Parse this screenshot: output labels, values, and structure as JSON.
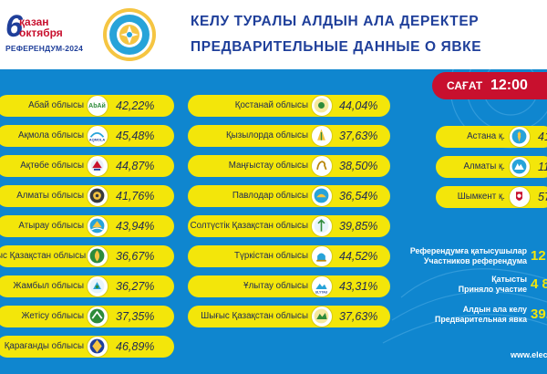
{
  "header": {
    "logo_day": "6",
    "logo_month_kz": "қазан",
    "logo_month_ru": "октября",
    "logo_referendum": "РЕФЕРЕНДУМ-2024",
    "title_kz": "КЕЛУ ТУРАЛЫ АЛДЫН АЛА ДЕРЕКТЕР",
    "title_ru": "ПРЕДВАРИТЕЛЬНЫЕ ДАННЫЕ О ЯВКЕ"
  },
  "time": {
    "label": "САҒАТ",
    "value": "12:00"
  },
  "regions_col1": [
    {
      "name": "Абай облысы",
      "value": "42,22%"
    },
    {
      "name": "Ақмола облысы",
      "value": "45,48%"
    },
    {
      "name": "Ақтөбе облысы",
      "value": "44,87%"
    },
    {
      "name": "Алматы облысы",
      "value": "41,76%"
    },
    {
      "name": "Атырау облысы",
      "value": "43,94%"
    },
    {
      "name": "ыс Қазақстан облысы",
      "value": "36,67%"
    },
    {
      "name": "Жамбыл облысы",
      "value": "36,27%"
    },
    {
      "name": "Жетісу облысы",
      "value": "37,35%"
    },
    {
      "name": "Қарағанды облысы",
      "value": "46,89%"
    }
  ],
  "regions_col2": [
    {
      "name": "Қостанай облысы",
      "value": "44,04%"
    },
    {
      "name": "Қызылорда облысы",
      "value": "37,63%"
    },
    {
      "name": "Маңғыстау облысы",
      "value": "38,50%"
    },
    {
      "name": "Павлодар облысы",
      "value": "36,54%"
    },
    {
      "name": "Солтүстік Қазақстан облысы",
      "value": "39,85%"
    },
    {
      "name": "Түркістан облысы",
      "value": "44,52%"
    },
    {
      "name": "Ұлытау облысы",
      "value": "43,31%"
    },
    {
      "name": "Шығыс Қазақстан облысы",
      "value": "37,63%"
    }
  ],
  "cities": [
    {
      "name": "Астана қ.",
      "value": "41"
    },
    {
      "name": "Алматы қ.",
      "value": "11"
    },
    {
      "name": "Шымкент қ.",
      "value": "57"
    }
  ],
  "stats": [
    {
      "line1": "Референдумға қатысушылар",
      "line2": "Участников референдума",
      "value": "12"
    },
    {
      "line1": "Қатысты",
      "line2": "Приняло участие",
      "value": "4 8"
    },
    {
      "line1": "Алдын ала келу",
      "line2": "Предварительная явка",
      "value": "39,"
    }
  ],
  "website": "www.elect",
  "colors": {
    "brand_blue": "#1f3f9a",
    "panel_blue": "#0f86cf",
    "pill_yellow": "#f3e60a",
    "accent_red": "#c8102e"
  }
}
